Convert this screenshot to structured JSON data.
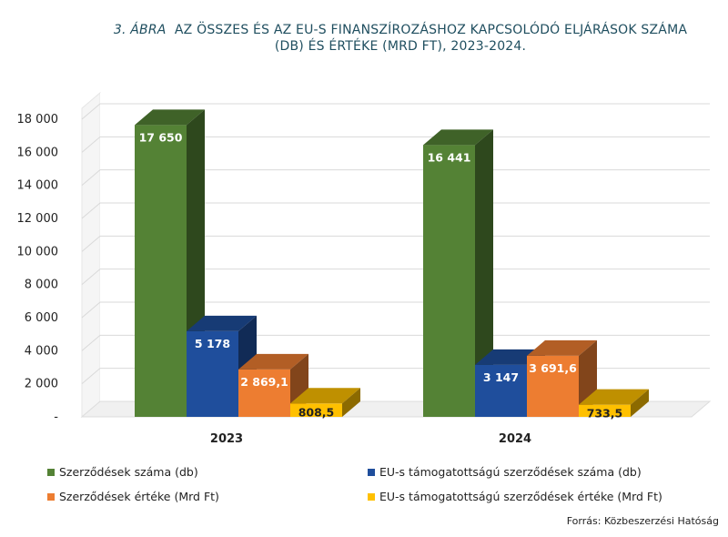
{
  "title": {
    "prefix": "3. ÁBRA",
    "line1": "AZ ÖSSZES ÉS AZ EU-S FINANSZÍROZÁSHOZ KAPCSOLÓDÓ ELJÁRÁSOK SZÁMA",
    "line2": "(DB) ÉS ÉRTÉKE (MRD FT), 2023-2024."
  },
  "chart_data": {
    "type": "bar",
    "categories": [
      "2023",
      "2024"
    ],
    "ylim": [
      0,
      18000
    ],
    "ytick_values": [
      0,
      2000,
      4000,
      6000,
      8000,
      10000,
      12000,
      14000,
      16000,
      18000
    ],
    "yticks": [
      "-",
      "2 000",
      "4 000",
      "6 000",
      "8 000",
      "10 000",
      "12 000",
      "14 000",
      "16 000",
      "18 000"
    ],
    "series": [
      {
        "name": "Szerződések száma (db)",
        "values": [
          17650,
          16441
        ],
        "labels": [
          "17 650",
          "16 441"
        ],
        "color": "#548235"
      },
      {
        "name": "EU-s támogatottságú szerződések száma (db)",
        "values": [
          5178,
          3147
        ],
        "labels": [
          "5 178",
          "3 147"
        ],
        "color": "#1f4e9c"
      },
      {
        "name": "Szerződések értéke (Mrd Ft)",
        "values": [
          2869.1,
          3691.6
        ],
        "labels": [
          "2 869,1",
          "3 691,6"
        ],
        "color": "#ed7d31"
      },
      {
        "name": "EU-s támogatottságú szerződések értéke (Mrd Ft)",
        "values": [
          808.5,
          733.5
        ],
        "labels": [
          "808,5",
          "733,5"
        ],
        "color": "#ffc000"
      }
    ]
  },
  "source": "Forrás: Közbeszerzési Hatóság"
}
